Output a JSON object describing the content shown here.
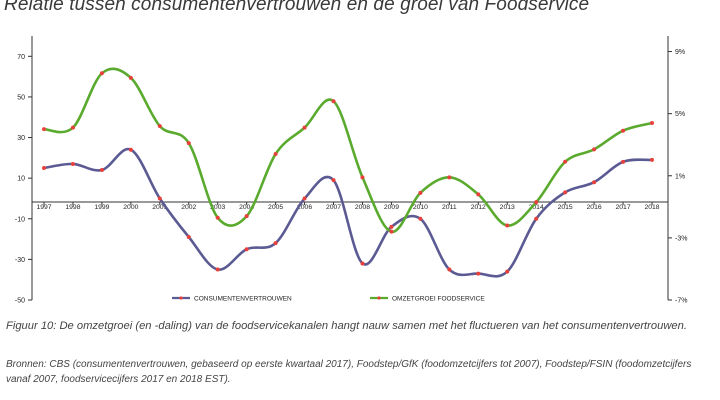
{
  "chart_data": {
    "type": "line",
    "title": "Relatie tussen consumentenvertrouwen en de groei van Foodservice",
    "categories": [
      "1997",
      "1998",
      "1999",
      "2000",
      "2001",
      "2002",
      "2003",
      "2004",
      "2005",
      "2006",
      "2007",
      "2008",
      "2009",
      "2010",
      "2011",
      "2012",
      "2013",
      "2014",
      "2015",
      "2016",
      "2017",
      "2018"
    ],
    "left_axis": {
      "ylim": [
        -50,
        80
      ],
      "ticks": [
        -50,
        -30,
        -10,
        10,
        30,
        50,
        70
      ],
      "tick_labels": [
        "-50",
        "-30",
        "-10",
        "10",
        "30",
        "50",
        "70"
      ]
    },
    "right_axis": {
      "ylim": [
        -7,
        10
      ],
      "ticks": [
        -7,
        -3,
        1,
        5,
        9
      ],
      "tick_labels": [
        "-7%",
        "-3%",
        "1%",
        "5%",
        "9%"
      ]
    },
    "series": [
      {
        "name": "CONSUMENTENVERTROUWEN",
        "axis": "left",
        "color": "#5b5a93",
        "values": [
          15,
          17,
          14,
          24,
          0,
          -19,
          -35,
          -25,
          -22,
          0,
          9,
          -32,
          -14,
          -10,
          -35,
          -37,
          -36,
          -10,
          3,
          8,
          18,
          19
        ]
      },
      {
        "name": "OMZETGROEI FOODSERVICE",
        "axis": "right",
        "color": "#5aaa2e",
        "values": [
          4.0,
          4.1,
          7.6,
          7.3,
          4.2,
          3.1,
          -1.7,
          -1.6,
          2.4,
          4.1,
          5.8,
          0.9,
          -2.6,
          -0.1,
          0.9,
          -0.2,
          -2.2,
          -0.7,
          1.9,
          2.7,
          3.9,
          4.4
        ]
      }
    ],
    "marker_color": "#e8413c",
    "grid": false,
    "legend": "bottom"
  },
  "caption": {
    "figure": "Figuur 10: De omzetgroei (en -daling) van de foodservicekanalen hangt nauw samen met het fluctueren van het consumentenvertrouwen.",
    "sources": "Bronnen: CBS (consumentenvertrouwen, gebaseerd op eerste kwartaal 2017), Foodstep/GfK (foodomzetcijfers tot 2007), Foodstep/FSIN (foodomzetcijfers vanaf 2007, foodservicecijfers 2017 en 2018 EST)."
  }
}
